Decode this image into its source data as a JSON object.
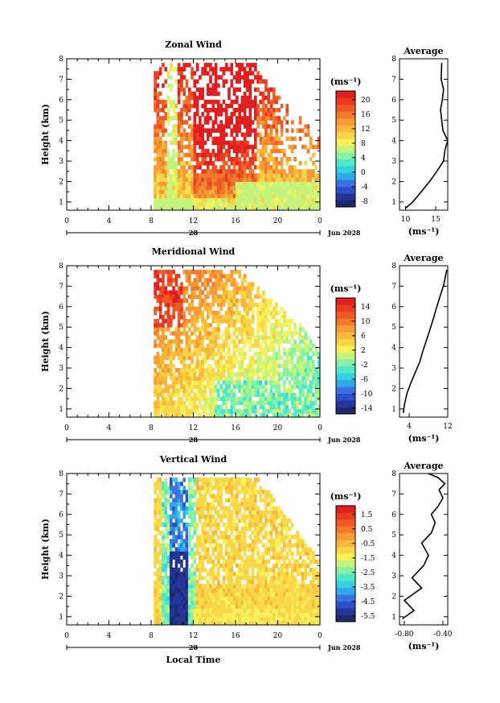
{
  "colors": {
    "palette": [
      "#1f2a6b",
      "#24369a",
      "#2b4fc8",
      "#3b72e0",
      "#2fa8e8",
      "#37d0e0",
      "#4ee7c8",
      "#86f1a6",
      "#c4f47d",
      "#f6f15a",
      "#f7d648",
      "#f8b83c",
      "#f59a34",
      "#f17a2c",
      "#ee5a26",
      "#e93b21",
      "#e02020"
    ],
    "missing": "#ffffff"
  },
  "xaxis": {
    "ticks": [
      "0",
      "4",
      "8",
      "12",
      "16",
      "20",
      "0"
    ],
    "date_label": "28",
    "month_label": "Jun 2028",
    "title": "Local Time"
  },
  "y_ticks": [
    "1",
    "2",
    "3",
    "4",
    "5",
    "6",
    "7",
    "8"
  ],
  "y_title": "Height (km)",
  "avg_title": "Average",
  "avg_unit": "(ms⁻¹)",
  "cb_unit": "(ms⁻¹)",
  "chart_data": [
    {
      "type": "heatmap",
      "title": "Zonal Wind",
      "xlabel": "",
      "ylabel": "Height (km)",
      "xlim": [
        0,
        24
      ],
      "ylim": [
        0.6,
        8
      ],
      "colorbar": {
        "unit": "(ms⁻¹)",
        "labels": [
          "20",
          "16",
          "12",
          "8",
          "4",
          "0",
          "-4",
          "-8"
        ],
        "range": [
          -10,
          22
        ]
      },
      "data_start_hour": 8.2,
      "profile": {
        "title": "Average",
        "xlabel": "(ms⁻¹)",
        "xticks": [
          "10",
          "15"
        ],
        "xlim": [
          9,
          17
        ],
        "x": [
          10.0,
          11.2,
          12.6,
          14.0,
          15.2,
          16.3,
          16.5,
          17.0,
          16.2,
          16.0,
          15.8,
          16.1,
          16.3,
          15.9,
          16.0
        ],
        "y": [
          0.7,
          1.0,
          1.5,
          2.0,
          2.5,
          3.0,
          3.5,
          4.0,
          4.5,
          5.0,
          5.5,
          6.0,
          6.5,
          7.0,
          7.8
        ]
      }
    },
    {
      "type": "heatmap",
      "title": "Meridional Wind",
      "xlabel": "",
      "ylabel": "Height (km)",
      "xlim": [
        0,
        24
      ],
      "ylim": [
        0.6,
        8
      ],
      "colorbar": {
        "unit": "(ms⁻¹)",
        "labels": [
          "14",
          "10",
          "6",
          "2",
          "-2",
          "-6",
          "-10",
          "-14"
        ],
        "range": [
          -16,
          16
        ]
      },
      "data_start_hour": 8.2,
      "profile": {
        "title": "Average",
        "xlabel": "(ms⁻¹)",
        "xticks": [
          "4",
          "12"
        ],
        "xlim": [
          2,
          12
        ],
        "x": [
          2.8,
          3.0,
          3.6,
          4.4,
          5.3,
          6.2,
          6.8,
          7.5,
          8.2,
          9.0,
          9.6,
          10.4,
          11.2,
          11.8
        ],
        "y": [
          0.8,
          1.2,
          1.8,
          2.3,
          2.8,
          3.3,
          3.8,
          4.3,
          4.8,
          5.4,
          5.9,
          6.5,
          7.1,
          7.8
        ]
      }
    },
    {
      "type": "heatmap",
      "title": "Vertical Wind",
      "xlabel": "Local Time",
      "ylabel": "Height (km)",
      "xlim": [
        0,
        24
      ],
      "ylim": [
        0.6,
        8
      ],
      "colorbar": {
        "unit": "(ms⁻¹)",
        "labels": [
          "1.5",
          "0.5",
          "-0.5",
          "-1.5",
          "-2.5",
          "-3.5",
          "-4.5",
          "-5.5"
        ],
        "range": [
          -6.0,
          2.0
        ]
      },
      "data_start_hour": 8.2,
      "profile": {
        "title": "Average",
        "xlabel": "(ms⁻¹)",
        "xticks": [
          "-0.80",
          "-0.40"
        ],
        "xlim": [
          -0.85,
          -0.35
        ],
        "x": [
          -0.82,
          -0.7,
          -0.8,
          -0.62,
          -0.72,
          -0.6,
          -0.55,
          -0.62,
          -0.52,
          -0.48,
          -0.52,
          -0.45,
          -0.4,
          -0.44,
          -0.38,
          -0.45,
          -0.55
        ],
        "y": [
          0.9,
          1.3,
          1.8,
          2.4,
          2.9,
          3.5,
          4.0,
          4.6,
          5.1,
          5.6,
          6.0,
          6.4,
          6.8,
          7.2,
          7.5,
          7.8,
          8.0
        ]
      }
    }
  ]
}
